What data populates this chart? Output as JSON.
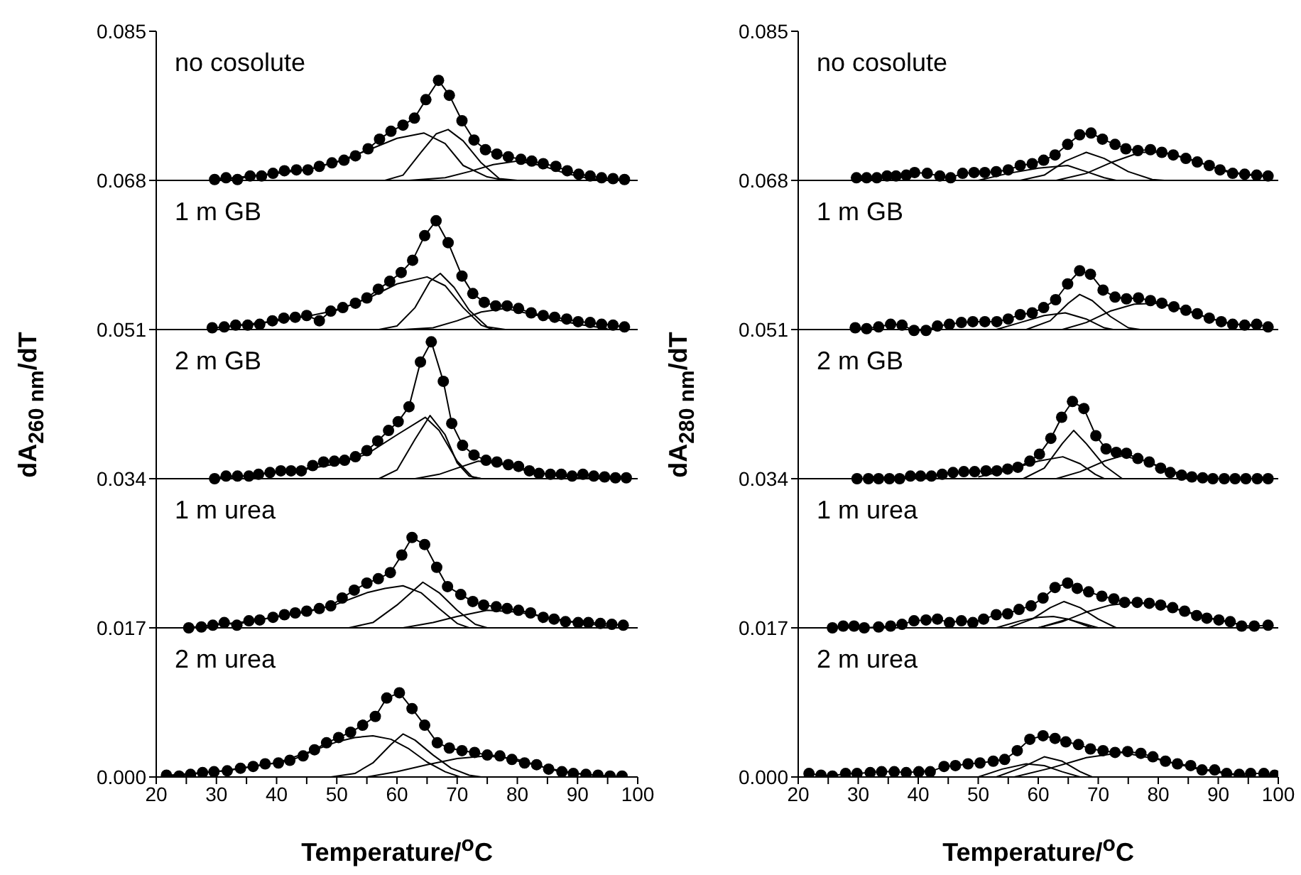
{
  "chart_data": [
    {
      "type": "line",
      "xlabel": "Temperature/$^{o}$C",
      "ylabel": "dA$_{260 nm}$/dT",
      "xlim": [
        20,
        100
      ],
      "xticks": [
        20,
        {
          "value": 25,
          "label": null
        },
        30,
        {
          "value": 35,
          "label": null
        },
        40,
        {
          "value": 45,
          "label": null
        },
        50,
        {
          "value": 55,
          "label": null
        },
        60,
        {
          "value": 65,
          "label": null
        },
        70,
        {
          "value": 75,
          "label": null
        },
        80,
        {
          "value": 85,
          "label": null
        },
        90,
        {
          "value": 95,
          "label": null
        },
        100
      ],
      "ylim": [
        0,
        0.085
      ],
      "yticks": [
        {
          "value": 0,
          "label": "0.000"
        },
        0.017,
        0.034,
        0.051,
        0.068,
        0.085
      ],
      "annotations": [
        "no cosolute",
        "1 m GB",
        "2 m GB",
        "1 m urea",
        "2 m urea"
      ],
      "ref_lines": [
        {
          "axis": "y",
          "value": 0.017,
          "color": "#000000"
        },
        {
          "axis": "y",
          "value": 0.034,
          "color": "#000000"
        },
        {
          "axis": "y",
          "value": 0.051,
          "color": "#000000"
        },
        {
          "axis": "y",
          "value": 0.068,
          "color": "#000000"
        }
      ],
      "series": [
        {
          "type": "line",
          "marker": "circle",
          "color": "#000000",
          "x": [
            29.7,
            31.6,
            33.5,
            35.6,
            37.5,
            39.4,
            41.3,
            43.3,
            45.2,
            47.1,
            49.2,
            51.2,
            53.1,
            55.2,
            57.1,
            59.0,
            61.0,
            62.9,
            64.8,
            66.9,
            68.7,
            70.8,
            72.8,
            74.7,
            76.6,
            78.5,
            80.6,
            82.4,
            84.3,
            86.4,
            88.3,
            90.2,
            92.1,
            94.0,
            95.9,
            97.8
          ],
          "values": [
            0.0681,
            0.0683,
            0.0681,
            0.0685,
            0.0685,
            0.0688,
            0.0691,
            0.0692,
            0.0692,
            0.0696,
            0.07,
            0.0703,
            0.0708,
            0.0716,
            0.0727,
            0.0736,
            0.0743,
            0.0751,
            0.0772,
            0.0794,
            0.0777,
            0.0748,
            0.0726,
            0.0715,
            0.071,
            0.0707,
            0.0704,
            0.0702,
            0.0699,
            0.0696,
            0.0691,
            0.0687,
            0.0685,
            0.0683,
            0.0682,
            0.0681
          ]
        },
        {
          "type": "line",
          "marker": "none",
          "color": "#000000",
          "x": [
            30,
            40,
            45,
            50,
            55,
            60,
            64.5,
            68,
            71,
            75,
            78
          ],
          "values": [
            0.0681,
            0.0688,
            0.0692,
            0.0701,
            0.0714,
            0.0728,
            0.0734,
            0.0722,
            0.0697,
            0.0684,
            0.068
          ]
        },
        {
          "type": "line",
          "marker": "none",
          "color": "#000000",
          "x": [
            58,
            61,
            64,
            66.5,
            68.5,
            71,
            74,
            77,
            80
          ],
          "values": [
            0.068,
            0.0686,
            0.0712,
            0.0733,
            0.0738,
            0.0725,
            0.07,
            0.0682,
            0.068
          ]
        },
        {
          "type": "line",
          "marker": "none",
          "color": "#000000",
          "x": [
            62,
            68,
            72,
            76,
            80,
            84,
            88,
            92,
            96
          ],
          "values": [
            0.068,
            0.0683,
            0.069,
            0.0698,
            0.0702,
            0.0697,
            0.0688,
            0.0682,
            0.068
          ]
        },
        {
          "type": "line",
          "marker": "circle",
          "color": "#000000",
          "x": [
            29.3,
            31.3,
            33.2,
            35.2,
            37.2,
            39.3,
            41.2,
            43.1,
            45.0,
            47.1,
            49.0,
            51.0,
            53.1,
            55.0,
            56.9,
            58.8,
            60.7,
            62.6,
            64.6,
            66.5,
            68.5,
            70.8,
            72.6,
            74.5,
            76.4,
            78.3,
            80.2,
            82.3,
            84.3,
            86.2,
            88.2,
            90.1,
            92.1,
            94.0,
            95.9,
            97.8
          ],
          "values": [
            0.0512,
            0.0513,
            0.0515,
            0.0515,
            0.0516,
            0.052,
            0.0523,
            0.0524,
            0.0526,
            0.052,
            0.0531,
            0.0535,
            0.054,
            0.0546,
            0.0556,
            0.0565,
            0.0575,
            0.0589,
            0.0617,
            0.0634,
            0.0609,
            0.0571,
            0.0551,
            0.0541,
            0.0537,
            0.0537,
            0.0534,
            0.0529,
            0.0526,
            0.0524,
            0.0522,
            0.0519,
            0.0518,
            0.0516,
            0.0515,
            0.0513
          ]
        },
        {
          "type": "line",
          "marker": "none",
          "color": "#000000",
          "x": [
            30,
            40,
            45,
            50,
            55,
            60,
            65,
            68,
            71,
            74,
            76
          ],
          "values": [
            0.0512,
            0.052,
            0.0525,
            0.0532,
            0.0545,
            0.0562,
            0.057,
            0.056,
            0.0535,
            0.0515,
            0.051
          ]
        },
        {
          "type": "line",
          "marker": "none",
          "color": "#000000",
          "x": [
            57,
            60,
            63,
            65.5,
            67.2,
            69.5,
            72,
            75,
            78
          ],
          "values": [
            0.051,
            0.0514,
            0.0535,
            0.0565,
            0.0574,
            0.0558,
            0.0532,
            0.0513,
            0.051
          ]
        },
        {
          "type": "line",
          "marker": "none",
          "color": "#000000",
          "x": [
            61,
            66,
            70,
            74,
            78,
            82,
            86,
            90,
            95
          ],
          "values": [
            0.051,
            0.0512,
            0.052,
            0.053,
            0.0534,
            0.0528,
            0.0522,
            0.0516,
            0.0511
          ]
        },
        {
          "type": "line",
          "marker": "circle",
          "color": "#000000",
          "x": [
            29.7,
            31.6,
            33.5,
            35.4,
            37.0,
            38.9,
            40.7,
            42.4,
            44.1,
            46.0,
            47.8,
            49.6,
            51.3,
            53.1,
            55.0,
            56.8,
            58.6,
            60.2,
            62.0,
            63.9,
            65.7,
            67.7,
            69.1,
            70.9,
            72.8,
            74.8,
            76.6,
            78.5,
            80.2,
            82.0,
            83.6,
            85.5,
            87.3,
            89.1,
            90.9,
            92.7,
            94.5,
            96.3,
            98.1
          ],
          "values": [
            0.034,
            0.0343,
            0.0343,
            0.0343,
            0.0345,
            0.0347,
            0.0349,
            0.0349,
            0.0349,
            0.0355,
            0.0359,
            0.036,
            0.0361,
            0.0365,
            0.0372,
            0.0383,
            0.0395,
            0.0405,
            0.0422,
            0.0473,
            0.0496,
            0.0451,
            0.0403,
            0.0378,
            0.0367,
            0.0361,
            0.0359,
            0.0356,
            0.0354,
            0.0349,
            0.0346,
            0.0345,
            0.0345,
            0.0343,
            0.0345,
            0.0343,
            0.0342,
            0.0341,
            0.0341
          ]
        },
        {
          "type": "line",
          "marker": "none",
          "color": "#000000",
          "x": [
            30,
            40,
            45,
            50,
            55,
            60,
            64.7,
            67,
            70,
            72.5,
            74
          ],
          "values": [
            0.034,
            0.0347,
            0.0351,
            0.0357,
            0.0368,
            0.039,
            0.041,
            0.0395,
            0.036,
            0.0342,
            0.034
          ]
        },
        {
          "type": "line",
          "marker": "none",
          "color": "#000000",
          "x": [
            57,
            60,
            63,
            65.5,
            68,
            70,
            72,
            74
          ],
          "values": [
            0.034,
            0.035,
            0.0385,
            0.0412,
            0.039,
            0.0358,
            0.0343,
            0.034
          ]
        },
        {
          "type": "line",
          "marker": "none",
          "color": "#000000",
          "x": [
            63,
            67,
            70,
            73.5,
            77,
            81,
            85,
            90,
            95
          ],
          "values": [
            0.034,
            0.0345,
            0.0352,
            0.036,
            0.0357,
            0.035,
            0.0345,
            0.0341,
            0.034
          ]
        },
        {
          "type": "line",
          "marker": "circle",
          "color": "#000000",
          "x": [
            25.4,
            27.5,
            29.4,
            31.3,
            33.4,
            35.4,
            37.2,
            39.4,
            41.3,
            43.1,
            45.0,
            47.1,
            49.0,
            50.9,
            52.9,
            55.0,
            56.9,
            58.9,
            60.8,
            62.5,
            64.6,
            66.6,
            68.4,
            70.6,
            72.6,
            74.4,
            76.5,
            78.3,
            80.2,
            82.2,
            84.3,
            86.1,
            88.0,
            90.1,
            91.8,
            93.8,
            95.7,
            97.6
          ],
          "values": [
            0.017,
            0.0171,
            0.0173,
            0.0176,
            0.0173,
            0.0178,
            0.0179,
            0.0182,
            0.0185,
            0.0187,
            0.0189,
            0.0192,
            0.0195,
            0.0204,
            0.0213,
            0.0221,
            0.0226,
            0.0233,
            0.0253,
            0.0273,
            0.0265,
            0.0239,
            0.0217,
            0.0208,
            0.02,
            0.0196,
            0.0194,
            0.0192,
            0.019,
            0.0187,
            0.0182,
            0.018,
            0.0177,
            0.0176,
            0.0176,
            0.0175,
            0.0174,
            0.0173
          ]
        },
        {
          "type": "line",
          "marker": "none",
          "color": "#000000",
          "x": [
            25,
            35,
            45,
            50,
            55,
            58,
            61,
            64,
            67,
            70,
            72
          ],
          "values": [
            0.017,
            0.0177,
            0.0188,
            0.0197,
            0.021,
            0.0215,
            0.0218,
            0.021,
            0.0192,
            0.0175,
            0.017
          ]
        },
        {
          "type": "line",
          "marker": "none",
          "color": "#000000",
          "x": [
            52,
            56,
            60,
            64.3,
            67,
            70,
            73,
            75
          ],
          "values": [
            0.017,
            0.0176,
            0.0196,
            0.0222,
            0.021,
            0.019,
            0.0174,
            0.017
          ]
        },
        {
          "type": "line",
          "marker": "none",
          "color": "#000000",
          "x": [
            61,
            66,
            70,
            75,
            80,
            85,
            90,
            96
          ],
          "values": [
            0.017,
            0.0176,
            0.0183,
            0.019,
            0.0188,
            0.0182,
            0.0176,
            0.0171
          ]
        },
        {
          "type": "line",
          "marker": "circle",
          "color": "#000000",
          "x": [
            21.7,
            23.8,
            25.7,
            27.7,
            29.6,
            31.8,
            34.0,
            36.1,
            38.1,
            40.3,
            42.2,
            44.4,
            46.3,
            48.3,
            50.3,
            52.3,
            54.3,
            56.4,
            58.3,
            60.4,
            62.5,
            64.6,
            66.7,
            68.7,
            70.8,
            72.9,
            75.0,
            77.1,
            79.1,
            81.2,
            83.2,
            85.2,
            87.4,
            89.3,
            91.4,
            93.4,
            95.4,
            97.4
          ],
          "values": [
            0.0002,
            0.0001,
            0.0003,
            0.0005,
            0.0006,
            0.0007,
            0.001,
            0.0012,
            0.0015,
            0.0016,
            0.0019,
            0.0024,
            0.0031,
            0.0039,
            0.0045,
            0.0051,
            0.0059,
            0.0069,
            0.009,
            0.0096,
            0.0078,
            0.0059,
            0.0039,
            0.0033,
            0.003,
            0.0028,
            0.0025,
            0.0024,
            0.002,
            0.0016,
            0.0014,
            0.0009,
            0.0006,
            0.0004,
            0.0003,
            0.0002,
            0.0001,
            0.0001
          ]
        },
        {
          "type": "line",
          "marker": "none",
          "color": "#000000",
          "x": [
            22,
            30,
            40,
            46,
            50,
            53,
            56,
            59,
            62,
            65,
            68,
            70.5
          ],
          "values": [
            0.0002,
            0.0006,
            0.0016,
            0.003,
            0.004,
            0.0045,
            0.0047,
            0.0043,
            0.0032,
            0.0017,
            0.0006,
            0
          ]
        },
        {
          "type": "line",
          "marker": "none",
          "color": "#000000",
          "x": [
            49,
            53,
            56,
            59,
            61,
            63,
            66,
            69,
            72,
            74
          ],
          "values": [
            0,
            0.0004,
            0.0016,
            0.0037,
            0.0049,
            0.0042,
            0.0025,
            0.001,
            0.0002,
            0
          ]
        },
        {
          "type": "line",
          "marker": "none",
          "color": "#000000",
          "x": [
            55,
            60,
            65,
            70,
            75,
            80,
            85,
            90,
            95
          ],
          "values": [
            0,
            0.0006,
            0.0014,
            0.0021,
            0.0024,
            0.002,
            0.001,
            0.0004,
            0
          ]
        }
      ]
    },
    {
      "type": "line",
      "xlabel": "Temperature/$^{o}$C",
      "ylabel": "dA$_{280 nm}$/dT",
      "xlim": [
        20,
        100
      ],
      "xticks": [
        20,
        {
          "value": 25,
          "label": null
        },
        30,
        {
          "value": 35,
          "label": null
        },
        40,
        {
          "value": 45,
          "label": null
        },
        50,
        {
          "value": 55,
          "label": null
        },
        60,
        {
          "value": 65,
          "label": null
        },
        70,
        {
          "value": 75,
          "label": null
        },
        80,
        {
          "value": 85,
          "label": null
        },
        90,
        {
          "value": 95,
          "label": null
        },
        100
      ],
      "ylim": [
        0,
        0.085
      ],
      "yticks": [
        {
          "value": 0,
          "label": "0.000"
        },
        0.017,
        0.034,
        0.051,
        0.068,
        0.085
      ],
      "annotations": [
        "no cosolute",
        "1 m GB",
        "2 m GB",
        "1 m urea",
        "2 m urea"
      ],
      "ref_lines": [
        {
          "axis": "y",
          "value": 0.017,
          "color": "#000000"
        },
        {
          "axis": "y",
          "value": 0.034,
          "color": "#000000"
        },
        {
          "axis": "y",
          "value": 0.051,
          "color": "#000000"
        },
        {
          "axis": "y",
          "value": 0.068,
          "color": "#000000"
        }
      ],
      "series": [
        {
          "type": "line",
          "marker": "circle",
          "color": "#000000",
          "x": [
            29.7,
            31.4,
            33.1,
            34.8,
            36.3,
            38.0,
            39.4,
            41.5,
            43.6,
            45.4,
            47.4,
            49.3,
            51.1,
            53.0,
            55.0,
            57.0,
            59.0,
            60.9,
            62.8,
            64.9,
            66.9,
            68.8,
            70.7,
            72.8,
            74.6,
            76.6,
            78.7,
            80.6,
            82.5,
            84.6,
            86.5,
            88.5,
            90.3,
            92.4,
            94.4,
            96.4,
            98.3
          ],
          "values": [
            0.0683,
            0.0683,
            0.0683,
            0.0685,
            0.0685,
            0.0686,
            0.0689,
            0.0688,
            0.0685,
            0.0683,
            0.0688,
            0.0689,
            0.0689,
            0.069,
            0.0692,
            0.0697,
            0.0699,
            0.0703,
            0.0709,
            0.0721,
            0.0732,
            0.0734,
            0.0727,
            0.0721,
            0.0716,
            0.0714,
            0.0715,
            0.0712,
            0.0709,
            0.0705,
            0.0701,
            0.0697,
            0.0692,
            0.0688,
            0.0687,
            0.0686,
            0.0685
          ]
        },
        {
          "type": "line",
          "marker": "none",
          "color": "#000000",
          "x": [
            50,
            55,
            60,
            64.9,
            68,
            71,
            73
          ],
          "values": [
            0.068,
            0.0688,
            0.0694,
            0.0697,
            0.069,
            0.0683,
            0.068
          ]
        },
        {
          "type": "line",
          "marker": "none",
          "color": "#000000",
          "x": [
            57,
            61,
            64.5,
            68,
            71,
            75,
            79,
            81
          ],
          "values": [
            0.068,
            0.0686,
            0.0702,
            0.0712,
            0.0705,
            0.069,
            0.0681,
            0.068
          ]
        },
        {
          "type": "line",
          "marker": "none",
          "color": "#000000",
          "x": [
            63,
            68,
            72,
            77,
            81,
            85,
            90,
            95,
            99
          ],
          "values": [
            0.068,
            0.0688,
            0.07,
            0.0712,
            0.0712,
            0.0705,
            0.0693,
            0.0686,
            0.0684
          ]
        },
        {
          "type": "line",
          "marker": "circle",
          "color": "#000000",
          "x": [
            29.5,
            31.4,
            33.4,
            35.4,
            37.3,
            39.3,
            41.3,
            43.2,
            45.2,
            47.2,
            49.1,
            51.1,
            53.1,
            55.0,
            57.0,
            59.0,
            60.9,
            62.9,
            64.9,
            66.9,
            68.7,
            70.8,
            72.8,
            74.7,
            76.7,
            78.7,
            80.6,
            82.6,
            84.6,
            86.5,
            88.5,
            90.5,
            92.4,
            94.4,
            96.4,
            98.3
          ],
          "values": [
            0.0512,
            0.0511,
            0.0513,
            0.0516,
            0.0515,
            0.0509,
            0.0509,
            0.0514,
            0.0516,
            0.0518,
            0.0519,
            0.0519,
            0.0519,
            0.0522,
            0.0527,
            0.0529,
            0.0535,
            0.0544,
            0.0562,
            0.0577,
            0.0573,
            0.0555,
            0.0547,
            0.0545,
            0.0546,
            0.0543,
            0.054,
            0.0536,
            0.0532,
            0.0528,
            0.0523,
            0.0519,
            0.0516,
            0.0515,
            0.0516,
            0.0513
          ]
        },
        {
          "type": "line",
          "marker": "none",
          "color": "#000000",
          "x": [
            53,
            57,
            61,
            64.5,
            68,
            71,
            72.5
          ],
          "values": [
            0.051,
            0.0518,
            0.0526,
            0.0529,
            0.0522,
            0.0512,
            0.051
          ]
        },
        {
          "type": "line",
          "marker": "none",
          "color": "#000000",
          "x": [
            58,
            62,
            65,
            66.9,
            69,
            72,
            75,
            77
          ],
          "values": [
            0.051,
            0.052,
            0.054,
            0.055,
            0.0543,
            0.0525,
            0.0512,
            0.051
          ]
        },
        {
          "type": "line",
          "marker": "none",
          "color": "#000000",
          "x": [
            64,
            68,
            72,
            76,
            80,
            84,
            88,
            92,
            97
          ],
          "values": [
            0.051,
            0.0518,
            0.0531,
            0.0539,
            0.054,
            0.0533,
            0.0524,
            0.0517,
            0.0513
          ]
        },
        {
          "type": "line",
          "marker": "circle",
          "color": "#000000",
          "x": [
            29.8,
            31.7,
            33.4,
            35.2,
            36.9,
            38.7,
            40.4,
            42.2,
            44.0,
            45.8,
            47.6,
            49.4,
            51.3,
            53.1,
            54.9,
            56.6,
            58.6,
            60.2,
            62.1,
            63.9,
            65.7,
            67.6,
            69.6,
            71.3,
            73.0,
            74.7,
            76.6,
            78.5,
            80.4,
            82.0,
            83.9,
            85.6,
            87.4,
            89.1,
            91.0,
            92.8,
            94.6,
            96.5,
            98.3
          ],
          "values": [
            0.034,
            0.034,
            0.034,
            0.034,
            0.034,
            0.0343,
            0.0343,
            0.0343,
            0.0345,
            0.0347,
            0.0348,
            0.0348,
            0.0349,
            0.0349,
            0.0351,
            0.0353,
            0.036,
            0.0368,
            0.0386,
            0.041,
            0.0428,
            0.042,
            0.0389,
            0.0374,
            0.037,
            0.0369,
            0.0363,
            0.0359,
            0.0352,
            0.0347,
            0.0344,
            0.0342,
            0.0341,
            0.034,
            0.034,
            0.034,
            0.034,
            0.034,
            0.034
          ]
        },
        {
          "type": "line",
          "marker": "none",
          "color": "#000000",
          "x": [
            50,
            55,
            60,
            64.1,
            67,
            69.5,
            71
          ],
          "values": [
            0.0342,
            0.035,
            0.036,
            0.0365,
            0.0357,
            0.0345,
            0.034
          ]
        },
        {
          "type": "line",
          "marker": "none",
          "color": "#000000",
          "x": [
            57.5,
            61,
            64,
            65.9,
            68,
            71,
            74
          ],
          "values": [
            0.034,
            0.0352,
            0.038,
            0.0395,
            0.038,
            0.0355,
            0.034
          ]
        },
        {
          "type": "line",
          "marker": "none",
          "color": "#000000",
          "x": [
            63,
            67,
            71,
            74,
            78,
            82,
            86,
            90
          ],
          "values": [
            0.034,
            0.0348,
            0.036,
            0.0366,
            0.036,
            0.0349,
            0.0342,
            0.034
          ]
        },
        {
          "type": "line",
          "marker": "circle",
          "color": "#000000",
          "x": [
            25.7,
            27.5,
            29.3,
            31.0,
            33.4,
            35.4,
            37.3,
            39.3,
            41.3,
            43.2,
            45.2,
            47.2,
            49.1,
            50.9,
            53.0,
            54.9,
            56.8,
            58.8,
            60.8,
            62.8,
            64.9,
            66.5,
            68.4,
            70.6,
            72.6,
            74.4,
            76.5,
            78.5,
            80.4,
            82.4,
            84.4,
            86.4,
            88.1,
            90.1,
            92.0,
            93.9,
            96.0,
            98.3
          ],
          "values": [
            0.017,
            0.0172,
            0.0172,
            0.017,
            0.0171,
            0.0172,
            0.0174,
            0.0178,
            0.0179,
            0.018,
            0.0176,
            0.0178,
            0.0176,
            0.018,
            0.0185,
            0.0186,
            0.0191,
            0.0195,
            0.0204,
            0.0216,
            0.0221,
            0.0215,
            0.0211,
            0.0206,
            0.0203,
            0.0199,
            0.0199,
            0.0198,
            0.0196,
            0.0193,
            0.0189,
            0.0184,
            0.0181,
            0.0179,
            0.0177,
            0.0172,
            0.0172,
            0.0173
          ]
        },
        {
          "type": "line",
          "marker": "none",
          "color": "#000000",
          "x": [
            53,
            57,
            60,
            62.5,
            65,
            67,
            69
          ],
          "values": [
            0.017,
            0.0178,
            0.0182,
            0.0183,
            0.018,
            0.0175,
            0.017
          ]
        },
        {
          "type": "line",
          "marker": "none",
          "color": "#000000",
          "x": [
            55,
            59,
            62,
            64.3,
            67,
            70,
            73
          ],
          "values": [
            0.017,
            0.018,
            0.0193,
            0.02,
            0.0193,
            0.018,
            0.017
          ]
        },
        {
          "type": "line",
          "marker": "none",
          "color": "#000000",
          "x": [
            60,
            64.9,
            70
          ],
          "values": [
            0.017,
            0.018,
            0.017
          ]
        },
        {
          "type": "line",
          "marker": "none",
          "color": "#000000",
          "x": [
            60,
            64,
            68,
            72,
            76,
            80,
            85,
            90,
            95
          ],
          "values": [
            0.017,
            0.0177,
            0.0188,
            0.0196,
            0.0199,
            0.0196,
            0.0188,
            0.0179,
            0.0172
          ]
        },
        {
          "type": "line",
          "marker": "circle",
          "color": "#000000",
          "x": [
            21.8,
            23.8,
            25.7,
            27.9,
            29.8,
            32.0,
            33.9,
            36.0,
            38.0,
            40.1,
            42.0,
            44.3,
            46.2,
            48.3,
            50.3,
            52.5,
            54.4,
            56.5,
            58.6,
            60.8,
            62.8,
            64.6,
            66.7,
            68.7,
            70.8,
            72.8,
            74.9,
            77.1,
            79.1,
            81.2,
            83.2,
            85.4,
            87.3,
            89.4,
            91.4,
            93.5,
            95.4,
            97.6,
            99.4
          ],
          "values": [
            0.0004,
            0.0002,
            0.0001,
            0.0004,
            0.0004,
            0.0005,
            0.0006,
            0.0006,
            0.0005,
            0.0006,
            0.0006,
            0.0012,
            0.0013,
            0.0015,
            0.0016,
            0.0018,
            0.002,
            0.003,
            0.0043,
            0.0047,
            0.0044,
            0.004,
            0.0037,
            0.0032,
            0.003,
            0.0028,
            0.0029,
            0.0027,
            0.0023,
            0.0018,
            0.0015,
            0.0013,
            0.0008,
            0.0008,
            0.0004,
            0.0003,
            0.0004,
            0.0004,
            0.0002
          ]
        },
        {
          "type": "line",
          "marker": "none",
          "color": "#000000",
          "x": [
            50,
            54,
            58,
            61,
            64,
            67
          ],
          "values": [
            0,
            0.0009,
            0.0015,
            0.0013,
            0.0006,
            0
          ]
        },
        {
          "type": "line",
          "marker": "none",
          "color": "#000000",
          "x": [
            53,
            57,
            61,
            64,
            67,
            69
          ],
          "values": [
            0,
            0.001,
            0.0023,
            0.0018,
            0.0006,
            0
          ]
        },
        {
          "type": "line",
          "marker": "none",
          "color": "#000000",
          "x": [
            56,
            62,
            68,
            74,
            80,
            86,
            92,
            96
          ],
          "values": [
            0,
            0.001,
            0.0022,
            0.0028,
            0.002,
            0.001,
            0.0003,
            0
          ]
        }
      ]
    }
  ]
}
